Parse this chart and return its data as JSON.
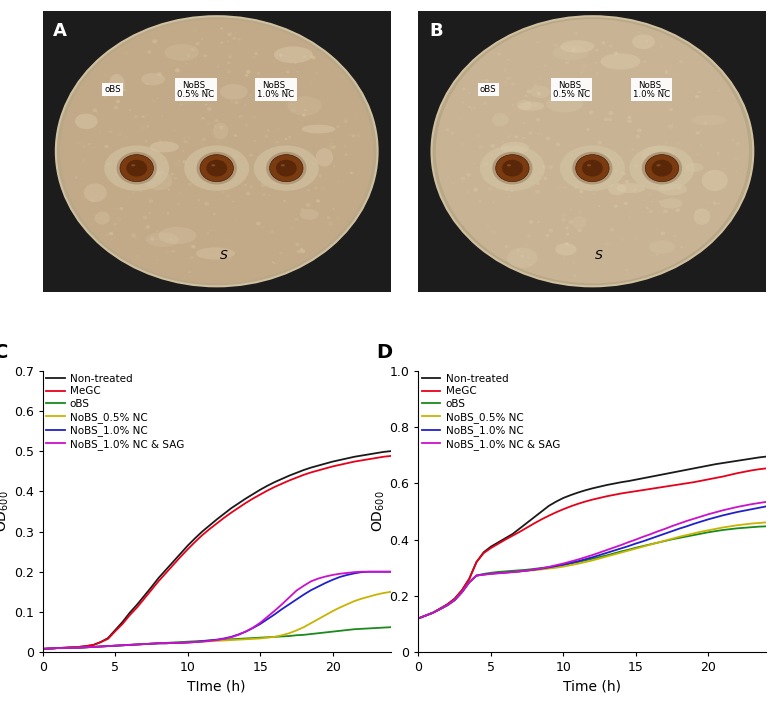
{
  "panel_labels": [
    "A",
    "B",
    "C",
    "D"
  ],
  "legend_labels": [
    "Non-treated",
    "MeGC",
    "oBS",
    "NoBS_0.5% NC",
    "NoBS_1.0% NC",
    "NoBS_1.0% NC & SAG"
  ],
  "line_colors": [
    "#1a1a1a",
    "#e8001a",
    "#1a8a1a",
    "#c8b400",
    "#2020cc",
    "#cc10cc"
  ],
  "plot_C": {
    "xlabel": "TIme (h)",
    "ylabel": "OD$_{600}$",
    "ylim": [
      0.0,
      0.7
    ],
    "yticks": [
      0.0,
      0.1,
      0.2,
      0.3,
      0.4,
      0.5,
      0.6,
      0.7
    ],
    "xlim": [
      0,
      24
    ],
    "xticks": [
      0,
      5,
      10,
      15,
      20
    ],
    "time": [
      0,
      0.5,
      1,
      1.5,
      2,
      2.5,
      3,
      3.5,
      4,
      4.5,
      5,
      5.5,
      6,
      6.5,
      7,
      7.5,
      8,
      8.5,
      9,
      9.5,
      10,
      10.5,
      11,
      11.5,
      12,
      12.5,
      13,
      13.5,
      14,
      14.5,
      15,
      15.5,
      16,
      16.5,
      17,
      17.5,
      18,
      18.5,
      19,
      19.5,
      20,
      20.5,
      21,
      21.5,
      22,
      22.5,
      23,
      23.5,
      24
    ],
    "non_treated": [
      0.008,
      0.009,
      0.01,
      0.011,
      0.012,
      0.013,
      0.015,
      0.018,
      0.025,
      0.035,
      0.055,
      0.075,
      0.098,
      0.118,
      0.14,
      0.162,
      0.185,
      0.205,
      0.225,
      0.245,
      0.265,
      0.283,
      0.3,
      0.315,
      0.33,
      0.344,
      0.358,
      0.37,
      0.382,
      0.393,
      0.404,
      0.414,
      0.423,
      0.431,
      0.439,
      0.446,
      0.453,
      0.459,
      0.464,
      0.469,
      0.474,
      0.478,
      0.482,
      0.486,
      0.489,
      0.492,
      0.495,
      0.498,
      0.5
    ],
    "megc": [
      0.008,
      0.009,
      0.01,
      0.011,
      0.012,
      0.013,
      0.015,
      0.018,
      0.025,
      0.033,
      0.052,
      0.07,
      0.092,
      0.111,
      0.133,
      0.155,
      0.177,
      0.197,
      0.217,
      0.237,
      0.256,
      0.274,
      0.291,
      0.306,
      0.32,
      0.334,
      0.347,
      0.359,
      0.371,
      0.382,
      0.392,
      0.402,
      0.411,
      0.419,
      0.427,
      0.434,
      0.441,
      0.447,
      0.452,
      0.457,
      0.462,
      0.466,
      0.47,
      0.474,
      0.477,
      0.48,
      0.483,
      0.486,
      0.488
    ],
    "obs": [
      0.008,
      0.009,
      0.01,
      0.01,
      0.011,
      0.011,
      0.012,
      0.013,
      0.014,
      0.015,
      0.016,
      0.017,
      0.018,
      0.019,
      0.02,
      0.021,
      0.022,
      0.023,
      0.024,
      0.025,
      0.026,
      0.027,
      0.028,
      0.029,
      0.03,
      0.031,
      0.032,
      0.033,
      0.034,
      0.035,
      0.036,
      0.037,
      0.038,
      0.039,
      0.04,
      0.042,
      0.043,
      0.045,
      0.047,
      0.049,
      0.051,
      0.053,
      0.055,
      0.057,
      0.058,
      0.059,
      0.06,
      0.061,
      0.062
    ],
    "nobs_05": [
      0.008,
      0.009,
      0.01,
      0.01,
      0.011,
      0.011,
      0.012,
      0.013,
      0.014,
      0.015,
      0.016,
      0.017,
      0.018,
      0.019,
      0.02,
      0.021,
      0.022,
      0.022,
      0.023,
      0.023,
      0.024,
      0.025,
      0.026,
      0.027,
      0.028,
      0.029,
      0.03,
      0.031,
      0.032,
      0.033,
      0.034,
      0.036,
      0.038,
      0.042,
      0.047,
      0.054,
      0.062,
      0.072,
      0.082,
      0.092,
      0.102,
      0.111,
      0.119,
      0.127,
      0.133,
      0.138,
      0.143,
      0.147,
      0.15
    ],
    "nobs_10": [
      0.008,
      0.009,
      0.01,
      0.01,
      0.011,
      0.011,
      0.012,
      0.013,
      0.014,
      0.015,
      0.016,
      0.017,
      0.018,
      0.019,
      0.02,
      0.021,
      0.022,
      0.022,
      0.023,
      0.023,
      0.024,
      0.025,
      0.027,
      0.029,
      0.031,
      0.034,
      0.038,
      0.044,
      0.051,
      0.06,
      0.07,
      0.082,
      0.094,
      0.107,
      0.119,
      0.131,
      0.143,
      0.154,
      0.163,
      0.172,
      0.18,
      0.187,
      0.192,
      0.196,
      0.199,
      0.2,
      0.2,
      0.2,
      0.2
    ],
    "nobs_10_sag": [
      0.008,
      0.009,
      0.01,
      0.01,
      0.011,
      0.011,
      0.012,
      0.013,
      0.014,
      0.015,
      0.016,
      0.017,
      0.018,
      0.019,
      0.02,
      0.021,
      0.022,
      0.022,
      0.023,
      0.023,
      0.024,
      0.025,
      0.026,
      0.028,
      0.03,
      0.033,
      0.037,
      0.043,
      0.051,
      0.061,
      0.073,
      0.088,
      0.103,
      0.119,
      0.136,
      0.153,
      0.165,
      0.176,
      0.183,
      0.188,
      0.192,
      0.195,
      0.197,
      0.199,
      0.2,
      0.2,
      0.2,
      0.2,
      0.2
    ]
  },
  "plot_D": {
    "xlabel": "Time (h)",
    "ylabel": "OD$_{600}$",
    "ylim": [
      0.0,
      1.0
    ],
    "yticks": [
      0.0,
      0.2,
      0.4,
      0.6,
      0.8,
      1.0
    ],
    "xlim": [
      0,
      24
    ],
    "xticks": [
      0,
      5,
      10,
      15,
      20
    ],
    "time": [
      0,
      0.5,
      1,
      1.5,
      2,
      2.5,
      3,
      3.5,
      4,
      4.5,
      5,
      5.5,
      6,
      6.5,
      7,
      7.5,
      8,
      8.5,
      9,
      9.5,
      10,
      10.5,
      11,
      11.5,
      12,
      12.5,
      13,
      13.5,
      14,
      14.5,
      15,
      15.5,
      16,
      16.5,
      17,
      17.5,
      18,
      18.5,
      19,
      19.5,
      20,
      20.5,
      21,
      21.5,
      22,
      22.5,
      23,
      23.5,
      24
    ],
    "non_treated": [
      0.12,
      0.13,
      0.14,
      0.155,
      0.17,
      0.19,
      0.22,
      0.26,
      0.32,
      0.355,
      0.375,
      0.39,
      0.405,
      0.42,
      0.44,
      0.46,
      0.48,
      0.5,
      0.52,
      0.535,
      0.548,
      0.558,
      0.567,
      0.575,
      0.582,
      0.588,
      0.594,
      0.599,
      0.604,
      0.608,
      0.613,
      0.618,
      0.623,
      0.628,
      0.633,
      0.638,
      0.643,
      0.648,
      0.653,
      0.658,
      0.663,
      0.668,
      0.672,
      0.676,
      0.68,
      0.684,
      0.688,
      0.692,
      0.695
    ],
    "megc": [
      0.12,
      0.13,
      0.14,
      0.155,
      0.17,
      0.19,
      0.22,
      0.26,
      0.32,
      0.352,
      0.37,
      0.385,
      0.4,
      0.414,
      0.428,
      0.443,
      0.458,
      0.472,
      0.485,
      0.497,
      0.508,
      0.518,
      0.527,
      0.535,
      0.542,
      0.548,
      0.554,
      0.559,
      0.564,
      0.568,
      0.572,
      0.576,
      0.58,
      0.584,
      0.588,
      0.592,
      0.596,
      0.6,
      0.604,
      0.609,
      0.614,
      0.619,
      0.624,
      0.63,
      0.636,
      0.641,
      0.646,
      0.65,
      0.653
    ],
    "obs": [
      0.12,
      0.13,
      0.14,
      0.153,
      0.167,
      0.185,
      0.213,
      0.248,
      0.272,
      0.278,
      0.282,
      0.285,
      0.287,
      0.289,
      0.291,
      0.293,
      0.296,
      0.299,
      0.302,
      0.306,
      0.31,
      0.315,
      0.32,
      0.326,
      0.332,
      0.338,
      0.344,
      0.351,
      0.358,
      0.364,
      0.371,
      0.377,
      0.383,
      0.389,
      0.395,
      0.401,
      0.406,
      0.411,
      0.416,
      0.421,
      0.426,
      0.43,
      0.434,
      0.437,
      0.44,
      0.442,
      0.444,
      0.446,
      0.447
    ],
    "nobs_05": [
      0.12,
      0.13,
      0.14,
      0.153,
      0.167,
      0.185,
      0.213,
      0.248,
      0.272,
      0.276,
      0.279,
      0.281,
      0.283,
      0.285,
      0.287,
      0.289,
      0.291,
      0.294,
      0.297,
      0.3,
      0.304,
      0.309,
      0.314,
      0.32,
      0.326,
      0.333,
      0.34,
      0.347,
      0.354,
      0.361,
      0.368,
      0.375,
      0.382,
      0.389,
      0.396,
      0.403,
      0.41,
      0.416,
      0.422,
      0.428,
      0.433,
      0.438,
      0.443,
      0.447,
      0.451,
      0.454,
      0.457,
      0.459,
      0.461
    ],
    "nobs_10": [
      0.12,
      0.13,
      0.14,
      0.153,
      0.167,
      0.185,
      0.213,
      0.248,
      0.272,
      0.276,
      0.279,
      0.281,
      0.283,
      0.285,
      0.287,
      0.29,
      0.293,
      0.297,
      0.301,
      0.306,
      0.311,
      0.317,
      0.323,
      0.33,
      0.337,
      0.345,
      0.353,
      0.361,
      0.369,
      0.377,
      0.386,
      0.394,
      0.403,
      0.412,
      0.421,
      0.43,
      0.439,
      0.447,
      0.456,
      0.464,
      0.472,
      0.479,
      0.486,
      0.492,
      0.498,
      0.503,
      0.508,
      0.513,
      0.518
    ],
    "nobs_10_sag": [
      0.12,
      0.13,
      0.14,
      0.153,
      0.167,
      0.185,
      0.213,
      0.248,
      0.272,
      0.275,
      0.278,
      0.28,
      0.282,
      0.284,
      0.287,
      0.29,
      0.294,
      0.298,
      0.303,
      0.309,
      0.315,
      0.322,
      0.329,
      0.337,
      0.345,
      0.354,
      0.363,
      0.372,
      0.381,
      0.391,
      0.4,
      0.41,
      0.419,
      0.429,
      0.438,
      0.448,
      0.457,
      0.466,
      0.474,
      0.482,
      0.49,
      0.497,
      0.504,
      0.51,
      0.516,
      0.521,
      0.526,
      0.53,
      0.534
    ]
  },
  "bg_color": "#ffffff",
  "photo_bg": "#1c1c1c",
  "dish_color_A": "#c2aa88",
  "dish_color_B": "#c8b494",
  "well_colors": [
    "#7a3b10",
    "#5a2808"
  ],
  "halo_color": "#d4c8a8",
  "speckle_color": "#d8c8a0"
}
